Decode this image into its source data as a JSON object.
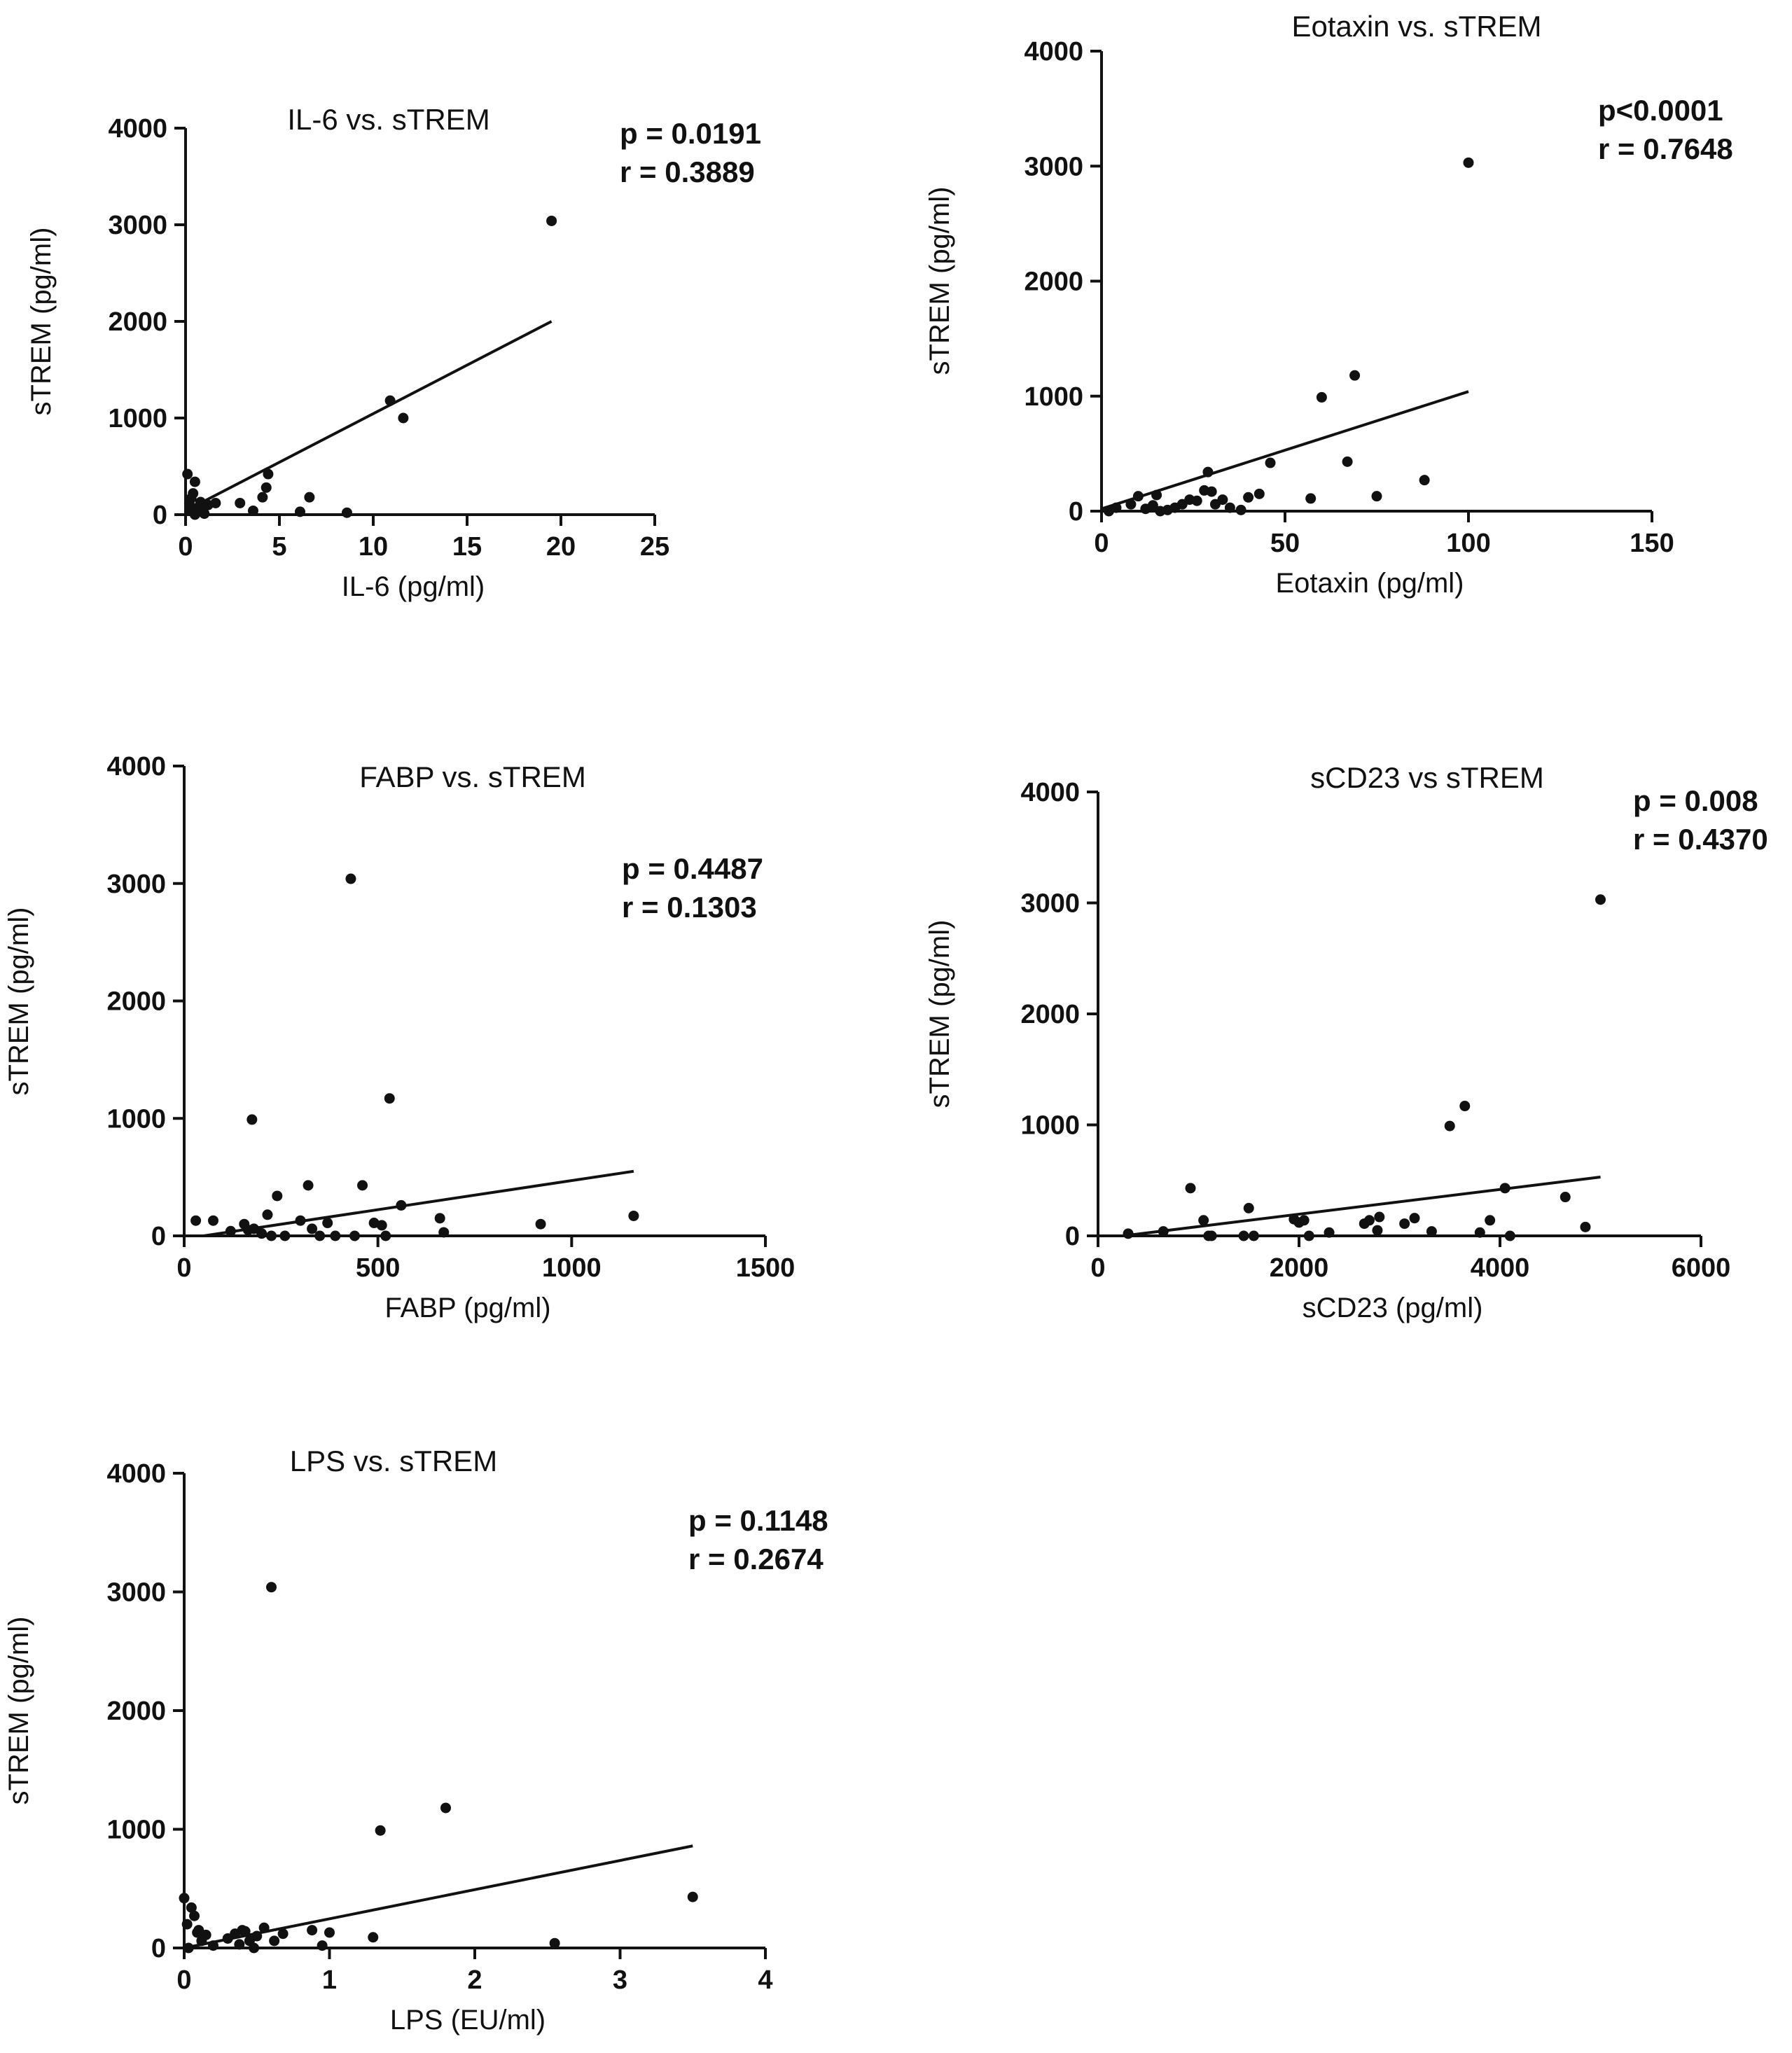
{
  "colors": {
    "ink": "#111111",
    "background": "#ffffff"
  },
  "chart_data": [
    {
      "type": "scatter",
      "title": "IL-6 vs. sTREM",
      "xlabel": "IL-6 (pg/ml)",
      "ylabel": "sTREM (pg/ml)",
      "xlim": [
        0,
        25
      ],
      "ylim": [
        0,
        4000
      ],
      "xticks": [
        0,
        5,
        10,
        15,
        20,
        25
      ],
      "yticks": [
        0,
        1000,
        2000,
        3000,
        4000
      ],
      "stats": {
        "p": "p = 0.0191",
        "r": "r = 0.3889"
      },
      "regression": {
        "x": [
          0,
          19.5
        ],
        "y": [
          40,
          2000
        ]
      },
      "points": {
        "x": [
          0.1,
          0.2,
          0.3,
          0.5,
          0.7,
          0.9,
          1.2,
          1.6,
          0.3,
          0.5,
          0.8,
          2.9,
          3.6,
          4.1,
          4.3,
          4.4,
          6.1,
          6.6,
          8.6,
          10.9,
          11.6,
          19.5,
          0.4,
          1.0
        ],
        "y": [
          420,
          120,
          170,
          340,
          80,
          30,
          100,
          120,
          40,
          0,
          130,
          120,
          40,
          180,
          280,
          420,
          30,
          180,
          20,
          1180,
          1000,
          3040,
          220,
          10
        ]
      }
    },
    {
      "type": "scatter",
      "title": "Eotaxin vs. sTREM",
      "xlabel": "Eotaxin (pg/ml)",
      "ylabel": "sTREM (pg/ml)",
      "xlim": [
        0,
        150
      ],
      "ylim": [
        0,
        4000
      ],
      "xticks": [
        0,
        50,
        100,
        150
      ],
      "yticks": [
        0,
        1000,
        2000,
        3000,
        4000
      ],
      "stats": {
        "p": "p<0.0001",
        "r": "r = 0.7648"
      },
      "regression": {
        "x": [
          0,
          100
        ],
        "y": [
          20,
          1040
        ]
      },
      "points": {
        "x": [
          2,
          4,
          8,
          10,
          12,
          14,
          15,
          16,
          18,
          20,
          22,
          24,
          26,
          28,
          29,
          30,
          31,
          33,
          35,
          38,
          40,
          43,
          46,
          57,
          60,
          67,
          69,
          75,
          88,
          100
        ],
        "y": [
          0,
          30,
          60,
          130,
          20,
          50,
          140,
          0,
          10,
          30,
          60,
          100,
          90,
          180,
          340,
          170,
          60,
          100,
          30,
          10,
          120,
          150,
          420,
          110,
          990,
          430,
          1180,
          130,
          270,
          3030
        ]
      }
    },
    {
      "type": "scatter",
      "title": "FABP vs. sTREM",
      "xlabel": "FABP (pg/ml)",
      "ylabel": "sTREM (pg/ml)",
      "xlim": [
        0,
        1500
      ],
      "ylim": [
        0,
        4000
      ],
      "xticks": [
        0,
        500,
        1000,
        1500
      ],
      "yticks": [
        0,
        1000,
        2000,
        3000,
        4000
      ],
      "stats": {
        "p": "p = 0.4487",
        "r": "r = 0.1303"
      },
      "regression": {
        "x": [
          50,
          1160
        ],
        "y": [
          0,
          550
        ]
      },
      "points": {
        "x": [
          30,
          75,
          120,
          155,
          165,
          175,
          200,
          215,
          225,
          240,
          260,
          300,
          320,
          330,
          350,
          370,
          390,
          430,
          460,
          490,
          510,
          530,
          560,
          660,
          670,
          920,
          1160,
          180,
          440,
          520
        ],
        "y": [
          130,
          130,
          40,
          100,
          50,
          990,
          20,
          180,
          0,
          340,
          0,
          130,
          430,
          60,
          0,
          110,
          0,
          3040,
          430,
          110,
          90,
          1170,
          260,
          150,
          30,
          100,
          170,
          60,
          0,
          0
        ]
      }
    },
    {
      "type": "scatter",
      "title": "sCD23 vs sTREM",
      "xlabel": "sCD23 (pg/ml)",
      "ylabel": "sTREM (pg/ml)",
      "xlim": [
        0,
        6000
      ],
      "ylim": [
        0,
        4000
      ],
      "xticks": [
        0,
        2000,
        4000,
        6000
      ],
      "yticks": [
        0,
        1000,
        2000,
        3000,
        4000
      ],
      "stats": {
        "p": "p = 0.008",
        "r": "r = 0.4370"
      },
      "regression": {
        "x": [
          250,
          5000
        ],
        "y": [
          0,
          530
        ]
      },
      "points": {
        "x": [
          300,
          650,
          920,
          1050,
          1100,
          1450,
          1500,
          1550,
          1950,
          2000,
          2100,
          2300,
          2650,
          2700,
          2780,
          2800,
          3050,
          3150,
          3320,
          3500,
          3650,
          3800,
          3900,
          4050,
          4100,
          4650,
          4850,
          5000,
          2050,
          1130
        ],
        "y": [
          20,
          40,
          430,
          140,
          0,
          0,
          250,
          0,
          150,
          120,
          0,
          30,
          110,
          140,
          50,
          170,
          110,
          160,
          40,
          990,
          1170,
          30,
          140,
          430,
          0,
          350,
          80,
          3030,
          140,
          0
        ]
      }
    },
    {
      "type": "scatter",
      "title": "LPS vs. sTREM",
      "xlabel": "LPS (EU/ml)",
      "ylabel": "sTREM (pg/ml)",
      "xlim": [
        0,
        4
      ],
      "ylim": [
        0,
        4000
      ],
      "xticks": [
        0,
        1,
        2,
        3,
        4
      ],
      "yticks": [
        0,
        1000,
        2000,
        3000,
        4000
      ],
      "stats": {
        "p": "p = 0.1148",
        "r": "r = 0.2674"
      },
      "regression": {
        "x": [
          0,
          3.5
        ],
        "y": [
          0,
          860
        ]
      },
      "points": {
        "x": [
          0.0,
          0.02,
          0.05,
          0.07,
          0.09,
          0.12,
          0.15,
          0.2,
          0.3,
          0.35,
          0.38,
          0.4,
          0.42,
          0.45,
          0.48,
          0.5,
          0.55,
          0.6,
          0.62,
          0.68,
          0.88,
          0.95,
          1.0,
          1.3,
          1.35,
          1.8,
          2.55,
          3.5,
          0.03,
          0.1
        ],
        "y": [
          420,
          200,
          340,
          270,
          130,
          60,
          110,
          20,
          80,
          120,
          30,
          150,
          140,
          60,
          0,
          100,
          170,
          3040,
          60,
          120,
          150,
          20,
          130,
          90,
          990,
          1180,
          40,
          430,
          0,
          150
        ]
      }
    }
  ]
}
